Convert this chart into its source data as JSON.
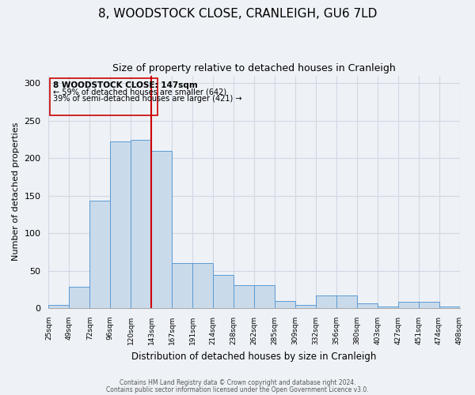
{
  "title": "8, WOODSTOCK CLOSE, CRANLEIGH, GU6 7LD",
  "subtitle": "Size of property relative to detached houses in Cranleigh",
  "xlabel": "Distribution of detached houses by size in Cranleigh",
  "ylabel": "Number of detached properties",
  "bar_values": [
    4,
    28,
    143,
    222,
    224,
    210,
    60,
    60,
    44,
    31,
    31,
    10,
    4,
    17,
    17,
    6,
    2,
    8,
    9,
    2
  ],
  "categories": [
    "25sqm",
    "49sqm",
    "72sqm",
    "96sqm",
    "120sqm",
    "143sqm",
    "167sqm",
    "191sqm",
    "214sqm",
    "238sqm",
    "262sqm",
    "285sqm",
    "309sqm",
    "332sqm",
    "356sqm",
    "380sqm",
    "403sqm",
    "427sqm",
    "451sqm",
    "474sqm",
    "498sqm"
  ],
  "bar_color": "#c9daea",
  "bar_edge_color": "#5b9bd5",
  "vline_x": 5,
  "vline_color": "#cc0000",
  "ylim": [
    0,
    310
  ],
  "yticks": [
    0,
    50,
    100,
    150,
    200,
    250,
    300
  ],
  "annotation_title": "8 WOODSTOCK CLOSE: 147sqm",
  "annotation_line1": "← 59% of detached houses are smaller (642)",
  "annotation_line2": "39% of semi-detached houses are larger (421) →",
  "annotation_box_color": "#cc0000",
  "footer_line1": "Contains HM Land Registry data © Crown copyright and database right 2024.",
  "footer_line2": "Contains public sector information licensed under the Open Government Licence v3.0.",
  "background_color": "#eef2f7",
  "grid_color": "#d0d8e4",
  "title_fontsize": 11,
  "subtitle_fontsize": 9
}
